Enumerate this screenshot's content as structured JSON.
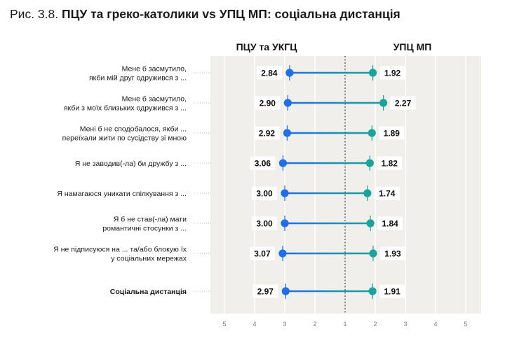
{
  "figure": {
    "title_lead": "Рис. 3.8.",
    "title_main": "ПЦУ та греко-католики vs УПЦ МП: соціальна дистанція"
  },
  "chart_data": {
    "type": "dumbbell",
    "title": "ПЦУ та греко-католики vs УПЦ МП: соціальна дистанція",
    "group_left": "ПЦУ та УКГЦ",
    "group_right": "УПЦ МП",
    "x_ticks": [
      "5",
      "4",
      "3",
      "2",
      "1",
      "2",
      "3",
      "4",
      "5"
    ],
    "left_axis_range": [
      5,
      1
    ],
    "right_axis_range": [
      1,
      5
    ],
    "colors": {
      "left": "#1f6fe6",
      "right": "#1aa39a",
      "background": "#f0efec",
      "grid": "#ffffff"
    },
    "items": [
      {
        "label": [
          "Мене б засмутило,",
          "якби мій друг одружився з ..."
        ],
        "left": 2.84,
        "right": 1.92,
        "left_label": "2.84",
        "right_label": "1.92"
      },
      {
        "label": [
          "Мене б засмутило,",
          "якби з моїх близьких одружився з ..."
        ],
        "left": 2.9,
        "right": 2.27,
        "left_label": "2.90",
        "right_label": "2.27"
      },
      {
        "label": [
          "Мені б не сподобалося, якби ...",
          "переїхали жити по сусідству зі мною"
        ],
        "left": 2.92,
        "right": 1.89,
        "left_label": "2.92",
        "right_label": "1.89"
      },
      {
        "label": [
          "Я не заводив(-ла) би дружбу з ..."
        ],
        "left": 3.06,
        "right": 1.82,
        "left_label": "3.06",
        "right_label": "1.82"
      },
      {
        "label": [
          "Я намагаюся уникати спілкування з ..."
        ],
        "left": 3.0,
        "right": 1.74,
        "left_label": "3.00",
        "right_label": "1.74"
      },
      {
        "label": [
          "Я б не став(-ла) мати",
          "романтичні стосунки з ..."
        ],
        "left": 3.0,
        "right": 1.84,
        "left_label": "3.00",
        "right_label": "1.84"
      },
      {
        "label": [
          "Я не підписуюся на ... та/або блокую їх",
          "у соціальних мережах"
        ],
        "left": 3.07,
        "right": 1.93,
        "left_label": "3.07",
        "right_label": "1.93"
      },
      {
        "label": [
          "Соціальна дистанція"
        ],
        "left": 2.97,
        "right": 1.91,
        "left_label": "2.97",
        "right_label": "1.91",
        "summary": true
      }
    ]
  }
}
